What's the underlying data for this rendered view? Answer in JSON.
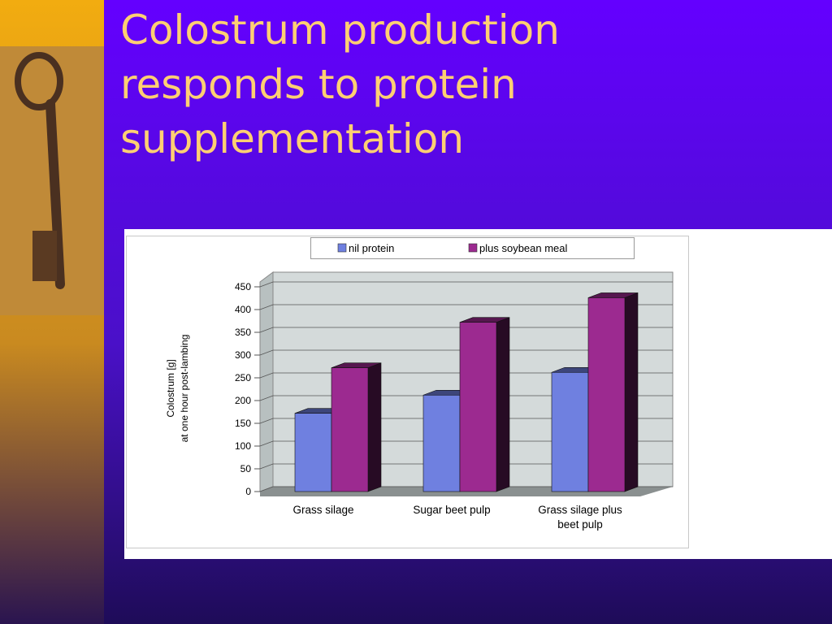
{
  "title": "Colostrum production responds to protein supplementation",
  "chart_data": {
    "type": "bar3d",
    "y_label": [
      "Colostrum [g]",
      "at one hour post-lambing"
    ],
    "categories": [
      "Grass silage",
      "Sugar beet pulp",
      "Grass silage plus beet pulp"
    ],
    "series": [
      {
        "name": "nil protein",
        "color": "#6f80e0",
        "values": [
          172,
          212,
          262
        ]
      },
      {
        "name": "plus soybean meal",
        "color": "#9c2a90",
        "values": [
          272,
          372,
          426
        ]
      }
    ],
    "ylim": [
      0,
      450
    ],
    "yticks": [
      0,
      50,
      100,
      150,
      200,
      250,
      300,
      350,
      400,
      450
    ],
    "grid": true
  }
}
